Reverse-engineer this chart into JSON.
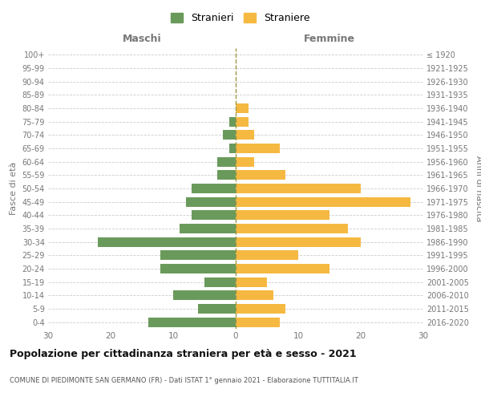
{
  "age_groups": [
    "100+",
    "95-99",
    "90-94",
    "85-89",
    "80-84",
    "75-79",
    "70-74",
    "65-69",
    "60-64",
    "55-59",
    "50-54",
    "45-49",
    "40-44",
    "35-39",
    "30-34",
    "25-29",
    "20-24",
    "15-19",
    "10-14",
    "5-9",
    "0-4"
  ],
  "birth_years": [
    "≤ 1920",
    "1921-1925",
    "1926-1930",
    "1931-1935",
    "1936-1940",
    "1941-1945",
    "1946-1950",
    "1951-1955",
    "1956-1960",
    "1961-1965",
    "1966-1970",
    "1971-1975",
    "1976-1980",
    "1981-1985",
    "1986-1990",
    "1991-1995",
    "1996-2000",
    "2001-2005",
    "2006-2010",
    "2011-2015",
    "2016-2020"
  ],
  "maschi": [
    0,
    0,
    0,
    0,
    0,
    1,
    2,
    1,
    3,
    3,
    7,
    8,
    7,
    9,
    22,
    12,
    12,
    5,
    10,
    6,
    14
  ],
  "femmine": [
    0,
    0,
    0,
    0,
    2,
    2,
    3,
    7,
    3,
    8,
    20,
    28,
    15,
    18,
    20,
    10,
    15,
    5,
    6,
    8,
    7
  ],
  "color_maschi": "#6a9a5b",
  "color_femmine": "#f5b942",
  "title": "Popolazione per cittadinanza straniera per età e sesso - 2021",
  "subtitle": "COMUNE DI PIEDIMONTE SAN GERMANO (FR) - Dati ISTAT 1° gennaio 2021 - Elaborazione TUTTITALIA.IT",
  "xlabel_left": "Maschi",
  "xlabel_right": "Femmine",
  "ylabel_left": "Fasce di età",
  "ylabel_right": "Anni di nascita",
  "legend_maschi": "Stranieri",
  "legend_femmine": "Straniere",
  "xlim": 30,
  "background_color": "#ffffff",
  "grid_color": "#cccccc",
  "axis_label_color": "#777777",
  "tick_color": "#777777",
  "vline_color": "#999944"
}
